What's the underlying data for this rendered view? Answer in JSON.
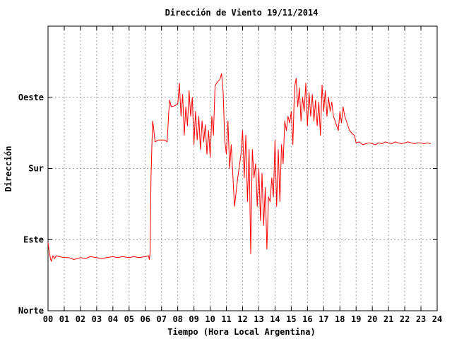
{
  "chart_data": {
    "type": "line",
    "title": "Dirección de Viento 19/11/2014",
    "xlabel": "Tiempo (Hora Local Argentina)",
    "ylabel": "Dirección",
    "xlim": [
      0,
      24
    ],
    "ylim": [
      0,
      300
    ],
    "x_ticks": [
      "00",
      "01",
      "02",
      "03",
      "04",
      "05",
      "06",
      "07",
      "08",
      "09",
      "10",
      "11",
      "12",
      "13",
      "14",
      "15",
      "16",
      "17",
      "18",
      "19",
      "20",
      "21",
      "22",
      "23",
      "24"
    ],
    "y_ticks": [
      {
        "label": "Norte",
        "value": 0
      },
      {
        "label": "Este",
        "value": 75
      },
      {
        "label": "Sur",
        "value": 150
      },
      {
        "label": "Oeste",
        "value": 225
      }
    ],
    "grid": true,
    "series": [
      {
        "color": "#ff0000",
        "points": [
          [
            0.0,
            72
          ],
          [
            0.05,
            65
          ],
          [
            0.1,
            60
          ],
          [
            0.15,
            55
          ],
          [
            0.2,
            52
          ],
          [
            0.3,
            58
          ],
          [
            0.4,
            55
          ],
          [
            0.5,
            58
          ],
          [
            0.7,
            57
          ],
          [
            1.0,
            56
          ],
          [
            1.3,
            56
          ],
          [
            1.6,
            54
          ],
          [
            2.0,
            56
          ],
          [
            2.3,
            55
          ],
          [
            2.6,
            57
          ],
          [
            3.0,
            56
          ],
          [
            3.3,
            55
          ],
          [
            3.6,
            56
          ],
          [
            4.0,
            57
          ],
          [
            4.3,
            56
          ],
          [
            4.6,
            57
          ],
          [
            5.0,
            56
          ],
          [
            5.3,
            57
          ],
          [
            5.6,
            56
          ],
          [
            6.0,
            57
          ],
          [
            6.2,
            58
          ],
          [
            6.25,
            54
          ],
          [
            6.3,
            62
          ],
          [
            6.35,
            140
          ],
          [
            6.4,
            170
          ],
          [
            6.45,
            200
          ],
          [
            6.5,
            195
          ],
          [
            6.6,
            178
          ],
          [
            6.8,
            180
          ],
          [
            7.0,
            180
          ],
          [
            7.2,
            180
          ],
          [
            7.35,
            178
          ],
          [
            7.45,
            210
          ],
          [
            7.5,
            222
          ],
          [
            7.6,
            215
          ],
          [
            7.8,
            216
          ],
          [
            8.0,
            218
          ],
          [
            8.1,
            240
          ],
          [
            8.2,
            205
          ],
          [
            8.3,
            228
          ],
          [
            8.4,
            185
          ],
          [
            8.5,
            215
          ],
          [
            8.6,
            195
          ],
          [
            8.7,
            232
          ],
          [
            8.8,
            205
          ],
          [
            8.9,
            225
          ],
          [
            9.0,
            175
          ],
          [
            9.1,
            210
          ],
          [
            9.2,
            180
          ],
          [
            9.3,
            205
          ],
          [
            9.4,
            170
          ],
          [
            9.5,
            200
          ],
          [
            9.6,
            178
          ],
          [
            9.7,
            196
          ],
          [
            9.8,
            165
          ],
          [
            9.9,
            190
          ],
          [
            10.0,
            162
          ],
          [
            10.1,
            205
          ],
          [
            10.2,
            185
          ],
          [
            10.3,
            237
          ],
          [
            10.4,
            240
          ],
          [
            10.5,
            242
          ],
          [
            10.6,
            244
          ],
          [
            10.7,
            250
          ],
          [
            10.8,
            230
          ],
          [
            10.9,
            180
          ],
          [
            11.0,
            165
          ],
          [
            11.1,
            200
          ],
          [
            11.2,
            150
          ],
          [
            11.3,
            175
          ],
          [
            11.5,
            110
          ],
          [
            11.7,
            140
          ],
          [
            11.9,
            165
          ],
          [
            12.0,
            190
          ],
          [
            12.1,
            140
          ],
          [
            12.2,
            185
          ],
          [
            12.3,
            115
          ],
          [
            12.4,
            170
          ],
          [
            12.5,
            60
          ],
          [
            12.6,
            170
          ],
          [
            12.7,
            140
          ],
          [
            12.8,
            155
          ],
          [
            12.9,
            110
          ],
          [
            13.0,
            150
          ],
          [
            13.1,
            95
          ],
          [
            13.2,
            145
          ],
          [
            13.3,
            90
          ],
          [
            13.4,
            130
          ],
          [
            13.5,
            65
          ],
          [
            13.6,
            120
          ],
          [
            13.7,
            115
          ],
          [
            13.8,
            140
          ],
          [
            13.9,
            120
          ],
          [
            14.0,
            180
          ],
          [
            14.1,
            110
          ],
          [
            14.2,
            170
          ],
          [
            14.3,
            115
          ],
          [
            14.4,
            175
          ],
          [
            14.5,
            155
          ],
          [
            14.6,
            200
          ],
          [
            14.7,
            190
          ],
          [
            14.8,
            205
          ],
          [
            14.9,
            198
          ],
          [
            15.0,
            210
          ],
          [
            15.1,
            175
          ],
          [
            15.2,
            235
          ],
          [
            15.3,
            245
          ],
          [
            15.4,
            215
          ],
          [
            15.5,
            235
          ],
          [
            15.6,
            200
          ],
          [
            15.7,
            225
          ],
          [
            15.8,
            210
          ],
          [
            15.9,
            240
          ],
          [
            16.0,
            195
          ],
          [
            16.1,
            230
          ],
          [
            16.2,
            205
          ],
          [
            16.3,
            228
          ],
          [
            16.4,
            200
          ],
          [
            16.5,
            222
          ],
          [
            16.6,
            195
          ],
          [
            16.7,
            220
          ],
          [
            16.8,
            185
          ],
          [
            16.9,
            238
          ],
          [
            17.0,
            210
          ],
          [
            17.1,
            232
          ],
          [
            17.2,
            205
          ],
          [
            17.3,
            225
          ],
          [
            17.4,
            210
          ],
          [
            17.5,
            220
          ],
          [
            17.6,
            205
          ],
          [
            17.7,
            200
          ],
          [
            17.8,
            195
          ],
          [
            17.9,
            190
          ],
          [
            18.0,
            210
          ],
          [
            18.1,
            198
          ],
          [
            18.2,
            215
          ],
          [
            18.3,
            205
          ],
          [
            18.4,
            200
          ],
          [
            18.5,
            195
          ],
          [
            18.6,
            190
          ],
          [
            18.7,
            188
          ],
          [
            18.8,
            186
          ],
          [
            18.9,
            185
          ],
          [
            19.0,
            177
          ],
          [
            19.2,
            178
          ],
          [
            19.4,
            175
          ],
          [
            19.6,
            176
          ],
          [
            19.8,
            177
          ],
          [
            20.0,
            176
          ],
          [
            20.2,
            175
          ],
          [
            20.4,
            177
          ],
          [
            20.6,
            176
          ],
          [
            20.8,
            178
          ],
          [
            21.0,
            177
          ],
          [
            21.2,
            176
          ],
          [
            21.4,
            178
          ],
          [
            21.6,
            177
          ],
          [
            21.8,
            176
          ],
          [
            22.0,
            177
          ],
          [
            22.2,
            178
          ],
          [
            22.4,
            177
          ],
          [
            22.6,
            176
          ],
          [
            22.8,
            177
          ],
          [
            23.0,
            177
          ],
          [
            23.2,
            176
          ],
          [
            23.4,
            177
          ],
          [
            23.6,
            176
          ]
        ]
      }
    ]
  }
}
